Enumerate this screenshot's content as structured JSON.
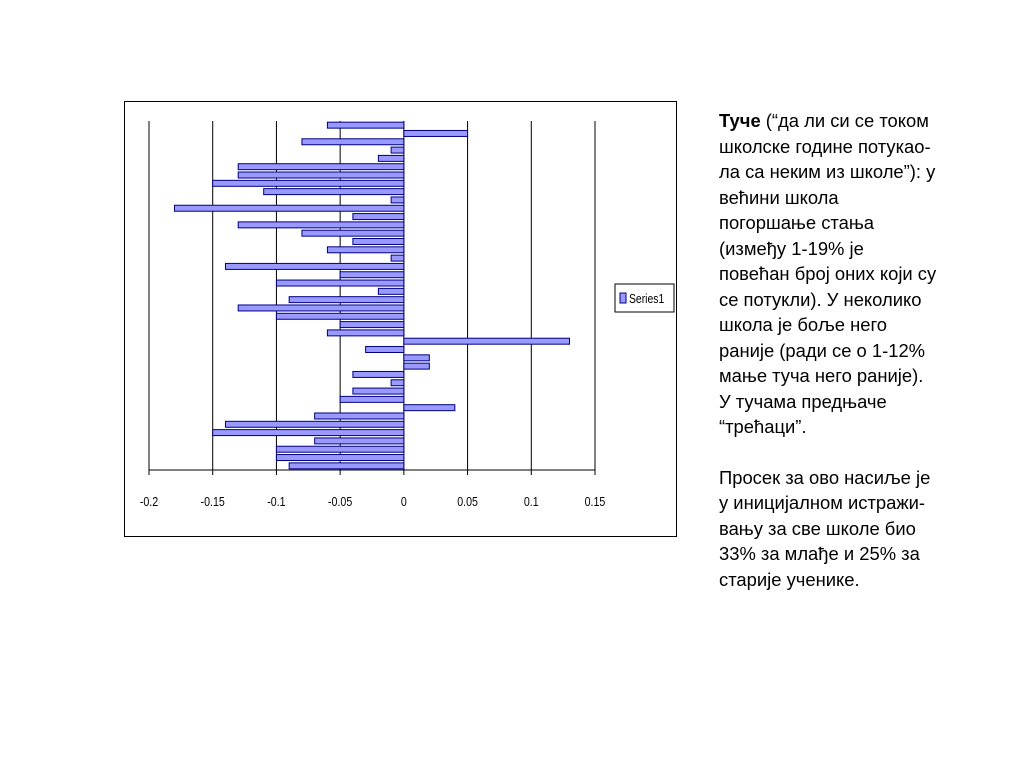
{
  "chart_data": {
    "type": "bar",
    "orientation": "horizontal",
    "series": [
      {
        "name": "Series1",
        "color": "#9999ff",
        "values": [
          -0.06,
          0.05,
          -0.08,
          -0.01,
          -0.02,
          -0.13,
          -0.13,
          -0.15,
          -0.11,
          -0.01,
          -0.18,
          -0.04,
          -0.13,
          -0.08,
          -0.04,
          -0.06,
          -0.01,
          -0.14,
          -0.05,
          -0.1,
          -0.02,
          -0.09,
          -0.13,
          -0.1,
          -0.05,
          -0.06,
          0.13,
          -0.03,
          0.02,
          0.02,
          -0.04,
          -0.01,
          -0.04,
          -0.05,
          0.04,
          -0.07,
          -0.14,
          -0.15,
          -0.07,
          -0.1,
          -0.1,
          -0.09
        ]
      }
    ],
    "xlim": [
      -0.2,
      0.15
    ],
    "xticks": [
      "-0.2",
      "-0.15",
      "-0.1",
      "-0.05",
      "0",
      "0.05",
      "0.1",
      "0.15"
    ],
    "xtick_values": [
      -0.2,
      -0.15,
      -0.1,
      -0.05,
      0,
      0.05,
      0.1,
      0.15
    ],
    "grid": "vertical",
    "legend_position": "right",
    "bar_border_color": "#000080"
  },
  "text": {
    "title_bold": "Туче",
    "para1_lines": [
      " (“да ли си се током",
      "школске године потукао-",
      "ла са неким из школе”): у",
      "већини школа",
      "погоршање стања",
      "(између 1-19% је",
      "повећан број оних који су",
      "се потукли). У неколико",
      "школа је боље  него",
      "раније (ради се о 1-12%",
      "мање туча него раније).",
      "У тучама предњаче",
      "“трећаци”."
    ],
    "para2_lines": [
      "Просек за ово насиље је",
      "у иницијалном истражи-",
      "вању за све школе био",
      "33% за млађе и 25% за",
      "старије ученике."
    ]
  }
}
